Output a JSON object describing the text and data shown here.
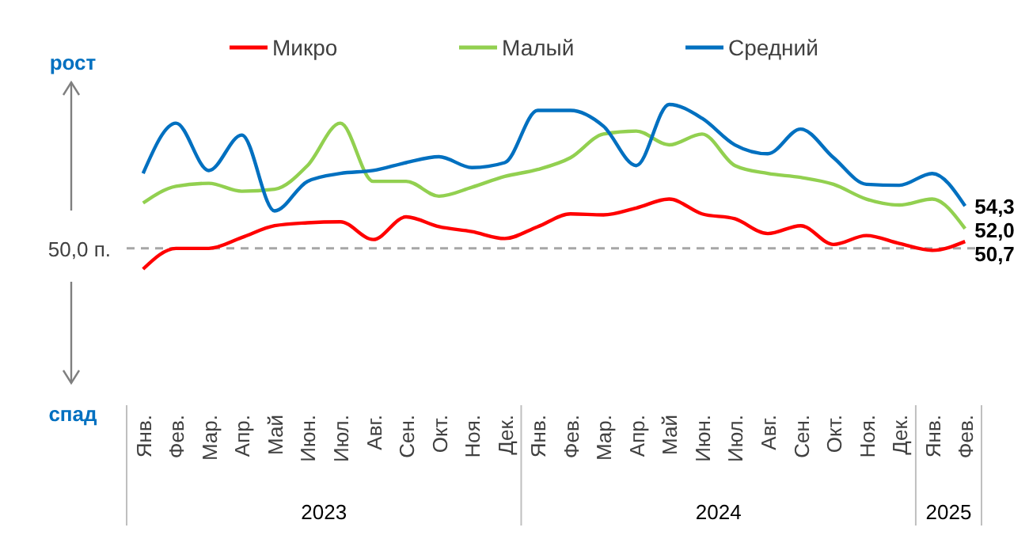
{
  "chart_data": {
    "type": "line",
    "categories": [
      "Янв.",
      "Фев.",
      "Мар.",
      "Апр.",
      "Май",
      "Июн.",
      "Июл.",
      "Авг.",
      "Сен.",
      "Окт.",
      "Ноя.",
      "Дек.",
      "Янв.",
      "Фев.",
      "Мар.",
      "Апр.",
      "Май",
      "Июн.",
      "Июл.",
      "Авг.",
      "Сен.",
      "Окт.",
      "Ноя.",
      "Дек.",
      "Янв.",
      "Фев."
    ],
    "series": [
      {
        "name": "Микро",
        "color": "#ff0000",
        "values": [
          47.9,
          50.0,
          50.0,
          51.1,
          52.3,
          52.6,
          52.7,
          50.9,
          53.2,
          52.2,
          51.7,
          51.0,
          52.2,
          53.5,
          53.4,
          54.1,
          55.0,
          53.5,
          53.0,
          51.5,
          52.3,
          50.4,
          51.3,
          50.5,
          49.8,
          50.7
        ],
        "value_labels": [
          null,
          null,
          null,
          null,
          null,
          null,
          null,
          null,
          null,
          null,
          null,
          null,
          null,
          null,
          null,
          null,
          null,
          null,
          null,
          null,
          null,
          null,
          null,
          null,
          null,
          "50,7"
        ]
      },
      {
        "name": "Малый",
        "color": "#92d050",
        "values": [
          54.6,
          56.3,
          56.6,
          55.8,
          56.0,
          58.4,
          62.7,
          56.8,
          56.8,
          55.3,
          56.2,
          57.3,
          58.0,
          59.2,
          61.6,
          61.9,
          60.5,
          61.6,
          58.4,
          57.6,
          57.2,
          56.5,
          55.0,
          54.4,
          55.0,
          52.0
        ],
        "value_labels": [
          null,
          null,
          null,
          null,
          null,
          null,
          null,
          null,
          null,
          null,
          null,
          null,
          null,
          null,
          null,
          null,
          null,
          null,
          null,
          null,
          null,
          null,
          null,
          null,
          null,
          "52,0"
        ]
      },
      {
        "name": "Средний",
        "color": "#0070c0",
        "values": [
          57.6,
          62.7,
          57.9,
          61.5,
          53.8,
          56.8,
          57.6,
          57.9,
          58.7,
          59.3,
          58.2,
          58.7,
          64.0,
          64.0,
          62.4,
          58.4,
          64.6,
          63.2,
          60.5,
          59.6,
          62.1,
          59.2,
          56.5,
          56.4,
          57.6,
          54.3
        ],
        "value_labels": [
          null,
          null,
          null,
          null,
          null,
          null,
          null,
          null,
          null,
          null,
          null,
          null,
          null,
          null,
          null,
          null,
          null,
          null,
          null,
          null,
          null,
          null,
          null,
          null,
          null,
          "54,3"
        ]
      }
    ],
    "ref_lines": [
      {
        "axis": "y",
        "value": 50,
        "label": "50,0 п.",
        "color": "#a6a6a6",
        "line_style": "dashed"
      }
    ],
    "annotations": [
      "рост",
      "спад",
      "2023",
      "2024",
      "2025"
    ],
    "legend": "top",
    "grid": false,
    "marker": "none",
    "line_style": "solid",
    "tick_labels": "x"
  }
}
